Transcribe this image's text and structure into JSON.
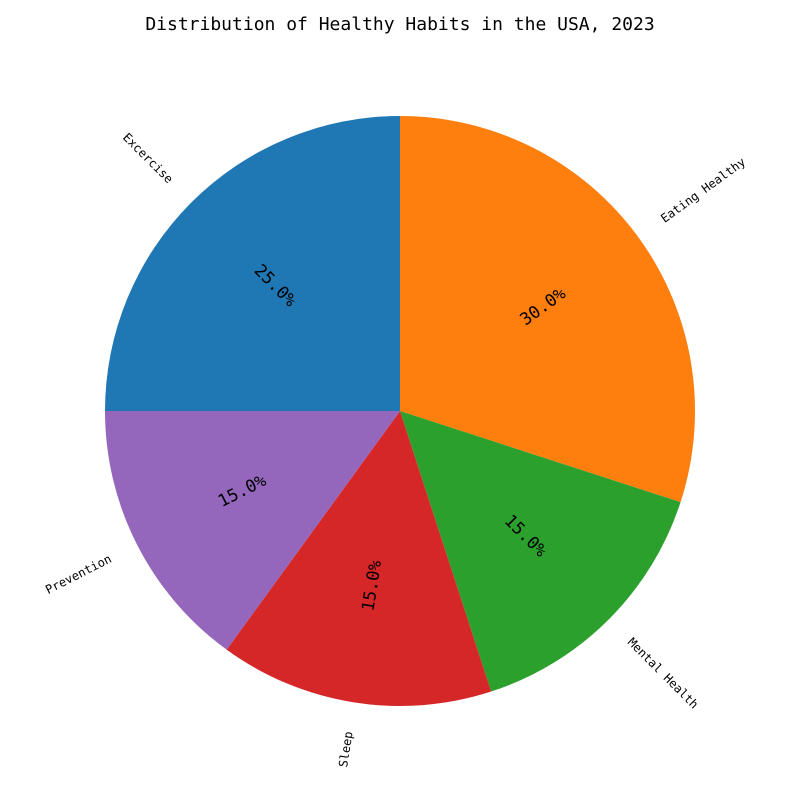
{
  "chart_data": {
    "type": "pie",
    "title": "Distribution of Healthy Habits in the USA, 2023",
    "categories": [
      "Eating Healthy",
      "Mental Health",
      "Sleep",
      "Prevention",
      "Excercise"
    ],
    "values": [
      30,
      15,
      15,
      15,
      25
    ],
    "percent_labels": [
      "30.0%",
      "15.0%",
      "15.0%",
      "15.0%",
      "25.0%"
    ],
    "colors": [
      "#ff7f0e",
      "#2ca02c",
      "#d62728",
      "#9467bd",
      "#1f77b4"
    ],
    "start_angle_deg": 90,
    "direction": "clockwise"
  }
}
